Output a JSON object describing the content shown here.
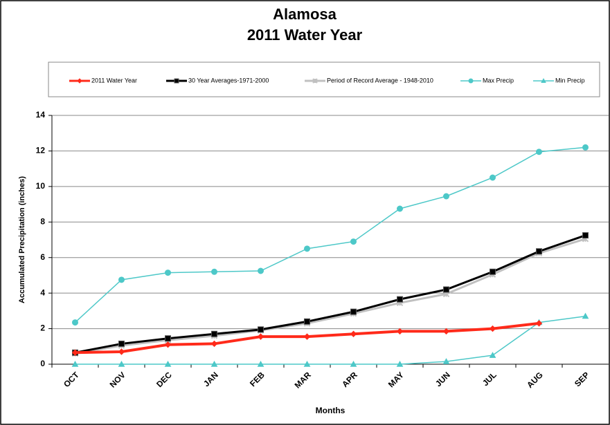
{
  "chart_data": {
    "type": "line",
    "title": "Alamosa",
    "subtitle": "2011 Water Year",
    "x_label": "Months",
    "y_label": "Accumulated Precipitation (inches)",
    "categories": [
      "OCT",
      "NOV",
      "DEC",
      "JAN",
      "FEB",
      "MAR",
      "APR",
      "MAY",
      "JUN",
      "JUL",
      "AUG",
      "SEP"
    ],
    "ylim": [
      0,
      14
    ],
    "yticks": [
      0,
      2,
      4,
      6,
      8,
      10,
      12,
      14
    ],
    "grid": true,
    "legend": "top",
    "series": [
      {
        "name": "Max Precip",
        "color": "#4dc8c8",
        "marker": "circle",
        "width": 1.5,
        "values": [
          2.35,
          4.75,
          5.15,
          5.2,
          5.25,
          6.5,
          6.9,
          8.75,
          9.45,
          10.5,
          11.95,
          12.2
        ]
      },
      {
        "name": "Min Precip",
        "color": "#4dc8c8",
        "marker": "triangle",
        "width": 1.5,
        "values": [
          0,
          0,
          0,
          0,
          0,
          0,
          0,
          0,
          0.15,
          0.5,
          2.35,
          2.7
        ]
      },
      {
        "name": "Period of Record Average - 1948-2010",
        "color": "#c0c0c0",
        "marker": "cross",
        "width": 3,
        "values": [
          0.6,
          1.05,
          1.35,
          1.6,
          1.9,
          2.3,
          2.85,
          3.45,
          3.95,
          5.05,
          6.25,
          7.05
        ]
      },
      {
        "name": "30 Year Averages-1971-2000",
        "color": "#000000",
        "marker": "square",
        "width": 3,
        "values": [
          0.65,
          1.15,
          1.45,
          1.7,
          1.95,
          2.4,
          2.95,
          3.65,
          4.2,
          5.2,
          6.35,
          7.25
        ]
      },
      {
        "name": "2011 Water Year",
        "color": "#ff2a1a",
        "marker": "diamond",
        "width": 4,
        "values": [
          0.65,
          0.7,
          1.1,
          1.15,
          1.55,
          1.55,
          1.7,
          1.85,
          1.85,
          2.0,
          2.3,
          null
        ]
      }
    ]
  }
}
